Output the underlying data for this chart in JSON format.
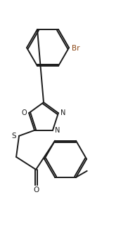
{
  "bg_color": "#ffffff",
  "line_color": "#1a1a1a",
  "br_color": "#8B4513",
  "label_Br": "Br",
  "label_N1": "N",
  "label_N2": "N",
  "label_O_ring": "O",
  "label_S": "S",
  "label_O_carbonyl": "O",
  "fig_width": 1.72,
  "fig_height": 3.28,
  "dpi": 100,
  "lw": 1.4
}
